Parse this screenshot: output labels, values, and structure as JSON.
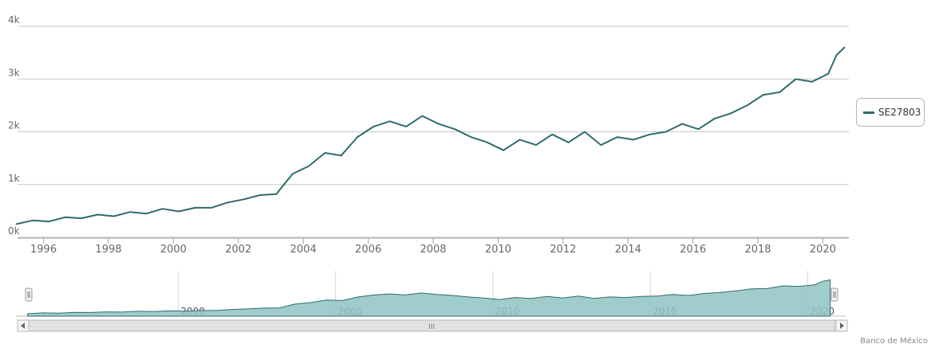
{
  "chart_data": {
    "type": "line",
    "legend": {
      "position": "right"
    },
    "credit": "Banco de México",
    "y_ticks": [
      "0k",
      "1k",
      "2k",
      "3k",
      "4k"
    ],
    "ylim": [
      0,
      4000
    ],
    "x_ticks": [
      "1996",
      "1998",
      "2000",
      "2002",
      "2004",
      "2006",
      "2008",
      "2010",
      "2012",
      "2014",
      "2016",
      "2018",
      "2020"
    ],
    "navigator_ticks": [
      "2000",
      "2005",
      "2010",
      "2015",
      "2020"
    ],
    "navigator_scrollbar_grip": "III",
    "series": [
      {
        "name": "SE27803",
        "color": "#2e6b6b",
        "x": [
          "1995-03",
          "1995-09",
          "1996-03",
          "1996-09",
          "1997-03",
          "1997-09",
          "1998-03",
          "1998-09",
          "1999-03",
          "1999-09",
          "2000-03",
          "2000-09",
          "2001-03",
          "2001-09",
          "2002-03",
          "2002-09",
          "2003-03",
          "2003-09",
          "2004-03",
          "2004-09",
          "2005-03",
          "2005-09",
          "2006-03",
          "2006-09",
          "2007-03",
          "2007-09",
          "2008-03",
          "2008-09",
          "2009-03",
          "2009-09",
          "2010-03",
          "2010-09",
          "2011-03",
          "2011-09",
          "2012-03",
          "2012-09",
          "2013-03",
          "2013-09",
          "2014-03",
          "2014-09",
          "2015-03",
          "2015-09",
          "2016-03",
          "2016-09",
          "2017-03",
          "2017-09",
          "2018-03",
          "2018-09",
          "2019-03",
          "2019-09",
          "2020-03",
          "2020-06",
          "2020-09"
        ],
        "values": [
          250,
          320,
          300,
          380,
          360,
          430,
          400,
          480,
          450,
          540,
          490,
          560,
          560,
          660,
          720,
          800,
          820,
          1200,
          1350,
          1600,
          1550,
          1900,
          2100,
          2200,
          2100,
          2300,
          2150,
          2050,
          1900,
          1800,
          1650,
          1850,
          1750,
          1950,
          1800,
          2000,
          1750,
          1900,
          1850,
          1950,
          2000,
          2150,
          2050,
          2250,
          2350,
          2500,
          2700,
          2750,
          3000,
          2950,
          3100,
          3450,
          3600
        ]
      }
    ]
  }
}
